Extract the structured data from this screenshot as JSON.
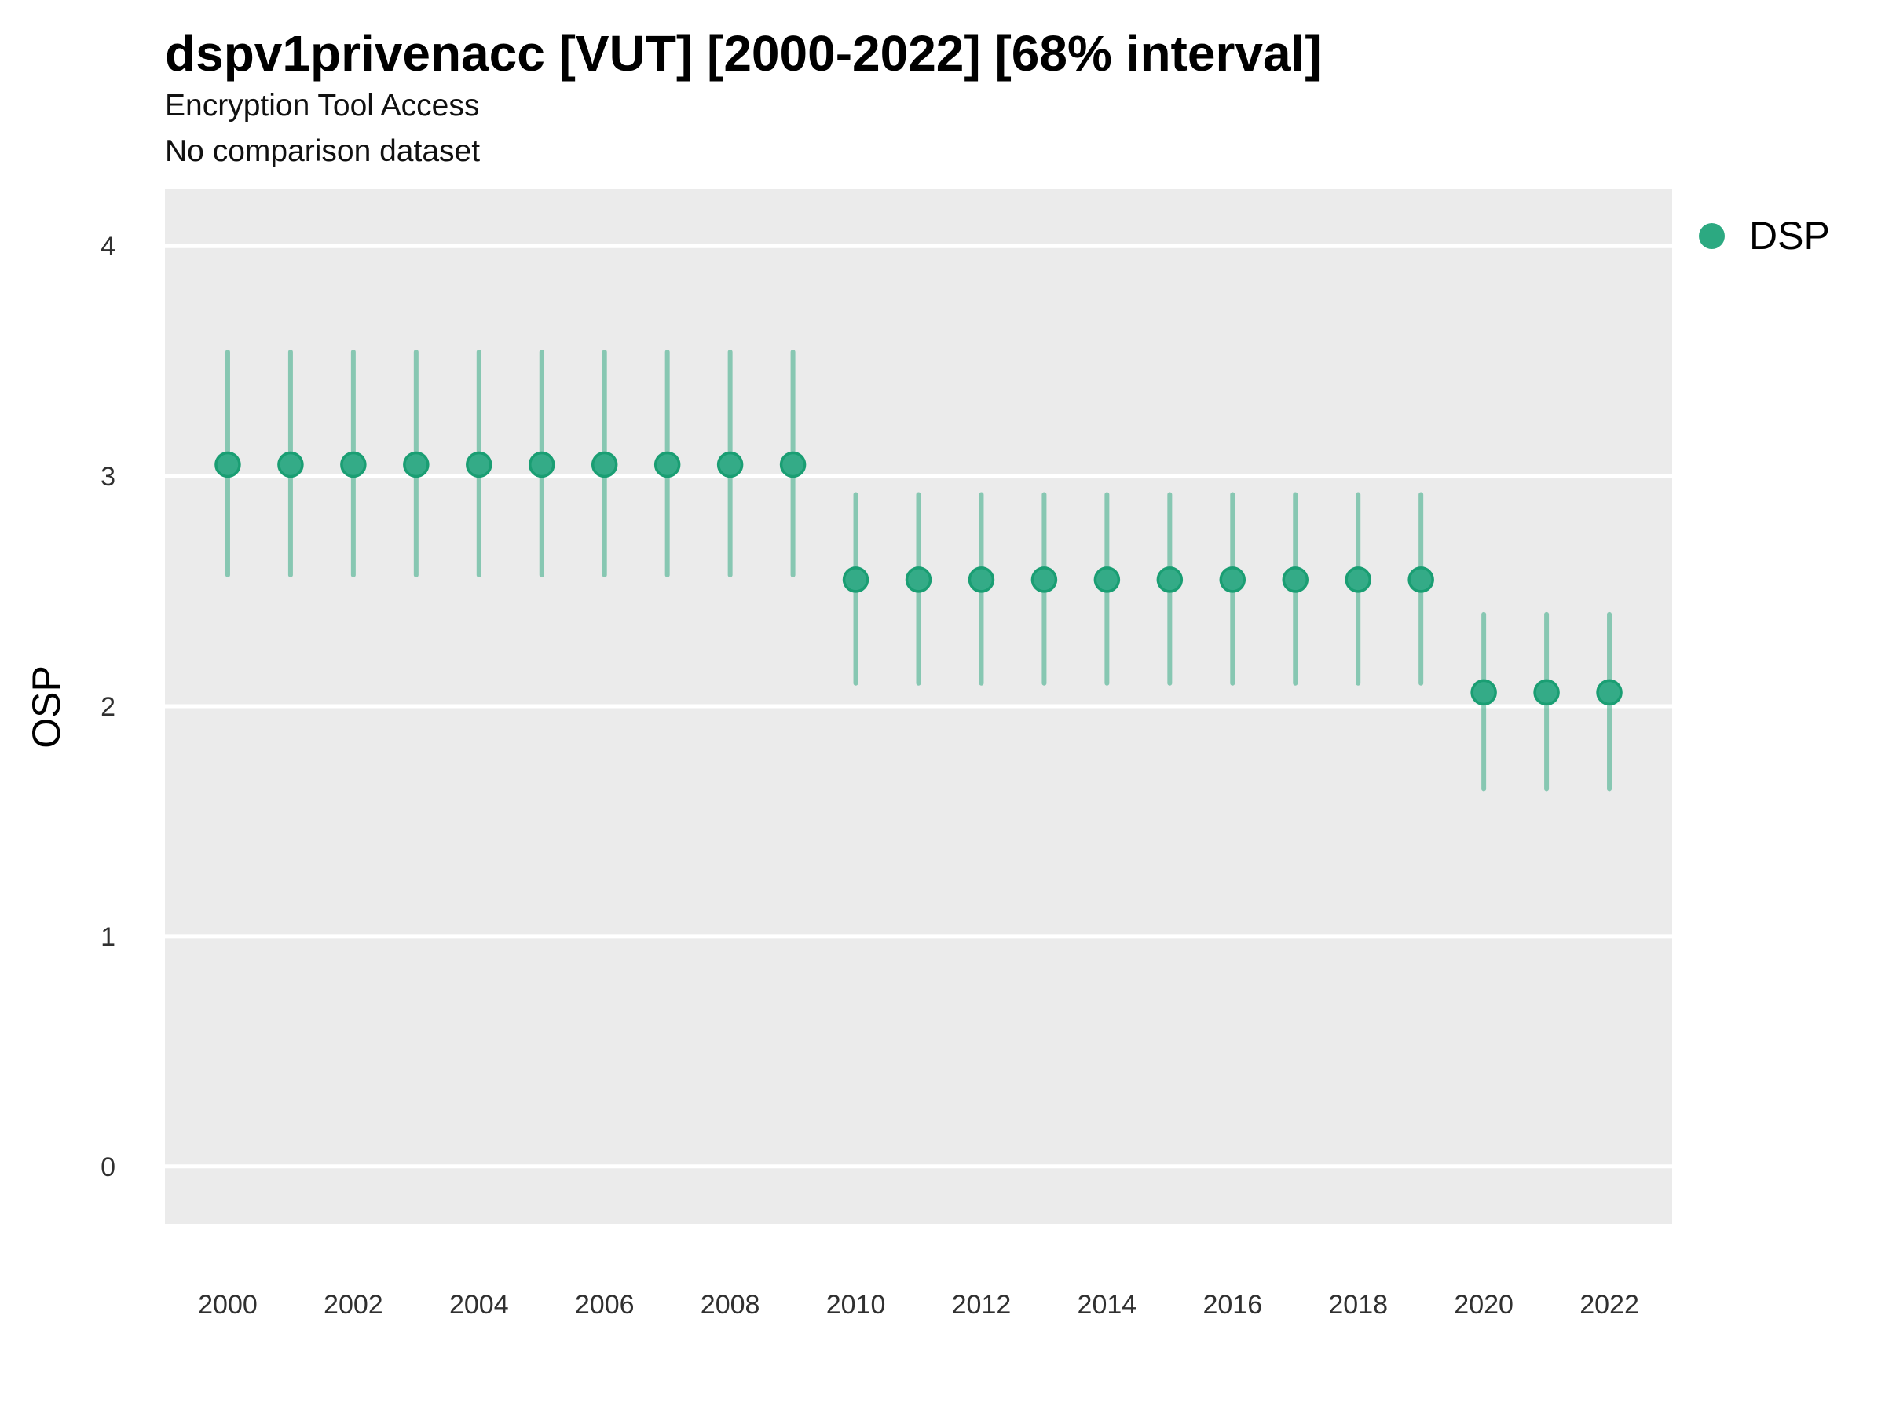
{
  "header": {
    "title": "dspv1privenacc [VUT] [2000-2022] [68% interval]",
    "subtitle": "Encryption Tool Access",
    "note": "No comparison dataset"
  },
  "legend": {
    "position": "right",
    "items": [
      {
        "label": "DSP",
        "color": "#2ca981"
      }
    ]
  },
  "chart_data": {
    "type": "scatter",
    "title": "dspv1privenacc [VUT] [2000-2022] [68% interval]",
    "subtitle": "Encryption Tool Access",
    "note": "No comparison dataset",
    "interval": "68%",
    "xlabel": "",
    "ylabel": "OSP",
    "xlim": [
      1999,
      2023
    ],
    "ylim": [
      -0.25,
      4.25
    ],
    "x_ticks": [
      2000,
      2002,
      2004,
      2006,
      2008,
      2010,
      2012,
      2014,
      2016,
      2018,
      2020,
      2022
    ],
    "y_ticks": [
      0,
      1,
      2,
      3,
      4
    ],
    "grid": "major-horizontal-white",
    "legend_position": "right",
    "series": [
      {
        "name": "DSP",
        "marker": "circle",
        "x": [
          2000,
          2001,
          2002,
          2003,
          2004,
          2005,
          2006,
          2007,
          2008,
          2009,
          2010,
          2011,
          2012,
          2013,
          2014,
          2015,
          2016,
          2017,
          2018,
          2019,
          2020,
          2021,
          2022
        ],
        "y": [
          3.05,
          3.05,
          3.05,
          3.05,
          3.05,
          3.05,
          3.05,
          3.05,
          3.05,
          3.05,
          2.55,
          2.55,
          2.55,
          2.55,
          2.55,
          2.55,
          2.55,
          2.55,
          2.55,
          2.55,
          2.06,
          2.06,
          2.06
        ],
        "y_lo": [
          2.57,
          2.57,
          2.57,
          2.57,
          2.57,
          2.57,
          2.57,
          2.57,
          2.57,
          2.57,
          2.1,
          2.1,
          2.1,
          2.1,
          2.1,
          2.1,
          2.1,
          2.1,
          2.1,
          2.1,
          1.64,
          1.64,
          1.64
        ],
        "y_hi": [
          3.54,
          3.54,
          3.54,
          3.54,
          3.54,
          3.54,
          3.54,
          3.54,
          3.54,
          3.54,
          2.92,
          2.92,
          2.92,
          2.92,
          2.92,
          2.92,
          2.92,
          2.92,
          2.92,
          2.92,
          2.4,
          2.4,
          2.4
        ]
      }
    ]
  },
  "colors": {
    "plot_background": "#ebebeb",
    "gridline": "#ffffff",
    "point_fill": "#34ab87",
    "point_stroke": "#1a9e73",
    "error_bar": "rgba(26,158,115,0.48)",
    "tick_text": "#303030",
    "axis_title_text": "#000000"
  }
}
